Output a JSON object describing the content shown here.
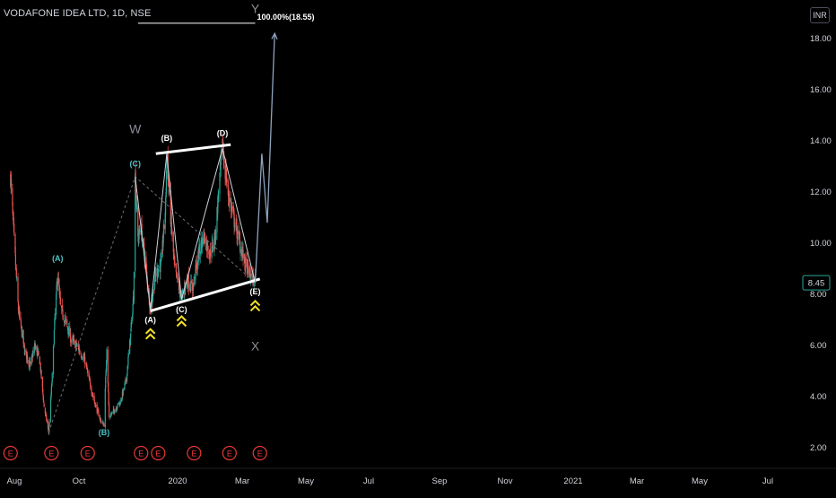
{
  "header": {
    "title": "VODAFONE IDEA LTD, 1D, NSE",
    "currency": "INR"
  },
  "colors": {
    "up": "#26a69a",
    "down": "#ef5350",
    "line": "#ffffff",
    "price_tag_bg": "#26a69a",
    "earnings": "#e53935",
    "label_teal": "#4fc3c7",
    "arrows": "#f5e12a",
    "projection": "#8fa3bf"
  },
  "chart_data": {
    "type": "candlestick",
    "symbol": "VODAFONE IDEA LTD",
    "interval": "1D",
    "exchange": "NSE",
    "y_axis": {
      "ticks": [
        "2.00",
        "4.00",
        "6.00",
        "8.00",
        "10.00",
        "12.00",
        "14.00",
        "16.00",
        "18.00"
      ],
      "range": [
        1.2,
        19.4
      ]
    },
    "x_axis": {
      "ticks": [
        "Aug",
        "Oct",
        "2020",
        "Mar",
        "May",
        "Jul",
        "Sep",
        "Nov",
        "2021",
        "Mar",
        "May",
        "Jul"
      ]
    },
    "last_price": "8.45",
    "price_path": [
      [
        "2019-07-31",
        12.6
      ],
      [
        "2019-08-08",
        10.4
      ],
      [
        "2019-08-20",
        7.4
      ],
      [
        "2019-09-05",
        5.8
      ],
      [
        "2019-09-20",
        5.2
      ],
      [
        "2019-10-01",
        6.0
      ],
      [
        "2019-10-14",
        5.4
      ],
      [
        "2019-10-25",
        3.6
      ],
      [
        "2019-11-06",
        2.6
      ],
      [
        "2019-11-15",
        4.8
      ],
      [
        "2019-11-22",
        7.2
      ],
      [
        "2019-11-29",
        8.8
      ],
      [
        "2019-12-06",
        7.5
      ],
      [
        "2019-12-20",
        6.9
      ],
      [
        "2020-01-03",
        6.2
      ],
      [
        "2020-01-17",
        6.0
      ],
      [
        "2020-02-07",
        5.4
      ],
      [
        "2020-02-21",
        4.4
      ],
      [
        "2020-03-06",
        3.6
      ],
      [
        "2020-03-20",
        3.0
      ],
      [
        "2020-03-27",
        2.9
      ],
      [
        "2020-04-03",
        6.0
      ],
      [
        "2020-04-09",
        3.2
      ],
      [
        "2020-04-24",
        3.5
      ],
      [
        "2020-05-08",
        3.8
      ],
      [
        "2020-05-22",
        4.6
      ],
      [
        "2020-06-02",
        6.2
      ],
      [
        "2020-06-11",
        8.0
      ],
      [
        "2020-06-15",
        12.6
      ],
      [
        "2020-06-22",
        10.2
      ],
      [
        "2020-06-30",
        10.6
      ],
      [
        "2020-07-10",
        9.4
      ],
      [
        "2020-07-24",
        7.4
      ],
      [
        "2020-08-07",
        8.8
      ],
      [
        "2020-08-21",
        9.2
      ],
      [
        "2020-09-01",
        11.5
      ],
      [
        "2020-09-04",
        13.5
      ],
      [
        "2020-09-14",
        11.0
      ],
      [
        "2020-09-24",
        9.0
      ],
      [
        "2020-10-12",
        7.8
      ],
      [
        "2020-10-26",
        8.6
      ],
      [
        "2020-11-09",
        8.2
      ],
      [
        "2020-11-25",
        9.6
      ],
      [
        "2020-12-08",
        10.3
      ],
      [
        "2020-12-24",
        9.6
      ],
      [
        "2021-01-06",
        10.2
      ],
      [
        "2021-01-19",
        12.8
      ],
      [
        "2021-01-25",
        13.7
      ],
      [
        "2021-02-08",
        12.0
      ],
      [
        "2021-02-22",
        11.0
      ],
      [
        "2021-03-10",
        10.0
      ],
      [
        "2021-03-24",
        9.2
      ],
      [
        "2021-04-05",
        8.8
      ],
      [
        "2021-04-19",
        8.45
      ]
    ],
    "wave_labels": [
      {
        "text": "(A)",
        "date": "2019-11-29",
        "price": 9.3,
        "color": "teal"
      },
      {
        "text": "(B)",
        "date": "2020-03-27",
        "price": 2.5,
        "color": "teal"
      },
      {
        "text": "(C)",
        "date": "2020-06-15",
        "price": 13.0,
        "color": "teal"
      },
      {
        "text": "W",
        "date": "2020-06-15",
        "price": 14.3,
        "color": "gray",
        "big": true
      },
      {
        "text": "(A)",
        "date": "2020-07-24",
        "price": 6.9,
        "color": "white"
      },
      {
        "text": "(B)",
        "date": "2020-09-04",
        "price": 14.0,
        "color": "white"
      },
      {
        "text": "(C)",
        "date": "2020-10-12",
        "price": 7.3,
        "color": "white"
      },
      {
        "text": "(D)",
        "date": "2021-01-25",
        "price": 14.2,
        "color": "white"
      },
      {
        "text": "(E)",
        "date": "2021-04-19",
        "price": 8.0,
        "color": "white"
      },
      {
        "text": "X",
        "date": "2021-04-19",
        "price": 5.8,
        "color": "gray",
        "big": true
      },
      {
        "text": "Y",
        "date": "2021-04-19",
        "price": 19.0,
        "color": "gray",
        "big": true
      }
    ],
    "triangle_upper": [
      [
        "2020-08-07",
        13.5
      ],
      [
        "2021-02-15",
        13.85
      ]
    ],
    "triangle_lower": [
      [
        "2020-07-24",
        7.35
      ],
      [
        "2021-05-01",
        8.6
      ]
    ],
    "abcde_path": [
      [
        "2020-06-15",
        12.6
      ],
      [
        "2020-07-24",
        7.4
      ],
      [
        "2020-09-04",
        13.5
      ],
      [
        "2020-10-12",
        7.8
      ],
      [
        "2021-01-25",
        13.7
      ],
      [
        "2021-04-19",
        8.45
      ]
    ],
    "wxy_dashed": [
      [
        "2019-11-06",
        2.6
      ],
      [
        "2020-06-15",
        12.6
      ],
      [
        "2021-04-19",
        8.45
      ]
    ],
    "projection_path": [
      [
        "2021-04-19",
        8.45
      ],
      [
        "2021-05-06",
        13.5
      ],
      [
        "2021-05-20",
        10.8
      ],
      [
        "2021-06-08",
        18.2
      ]
    ],
    "target_line": {
      "start": "2020-06-22",
      "end": "2021-04-19",
      "price": 18.6,
      "label": "100.00%(18.55)"
    },
    "buy_arrows": [
      {
        "date": "2020-07-24",
        "price": 6.5
      },
      {
        "date": "2020-10-12",
        "price": 7.0
      },
      {
        "date": "2021-04-19",
        "price": 7.6
      }
    ],
    "earnings_events": [
      "2019-07-31",
      "2019-11-13",
      "2020-02-14",
      "2020-06-30",
      "2020-08-13",
      "2020-11-13",
      "2021-02-12",
      "2021-05-01"
    ],
    "earnings_label": "E"
  }
}
